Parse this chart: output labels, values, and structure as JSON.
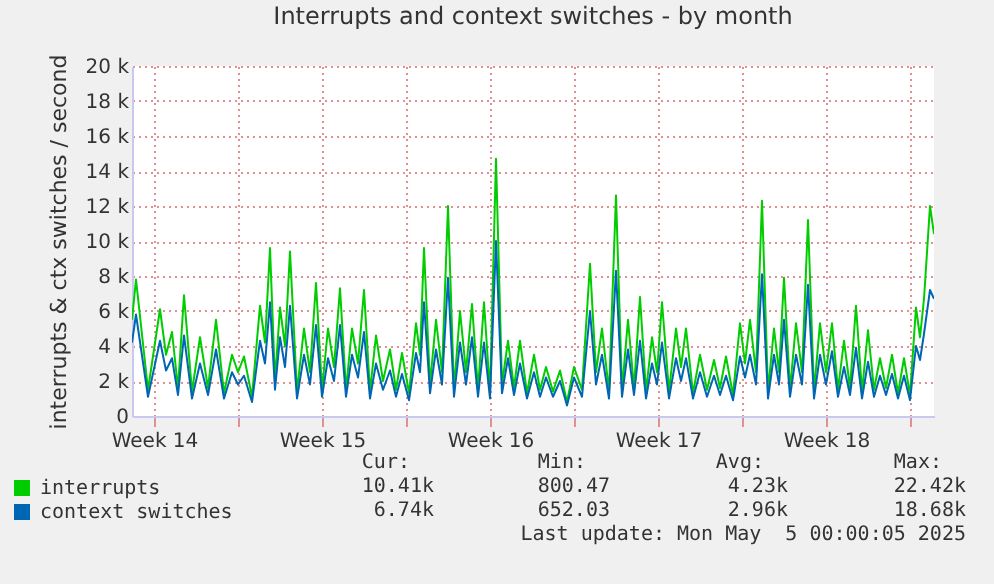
{
  "chart_data": {
    "type": "line",
    "title": "Interrupts and context switches - by month",
    "ylabel": "interrupts & ctx switches / second",
    "x": [
      "2025-04-01T14:00",
      "2025-04-01T18:00",
      "2025-04-02T06:00",
      "2025-04-02T18:00",
      "2025-04-03T00:00",
      "2025-04-03T06:00",
      "2025-04-03T12:00",
      "2025-04-03T18:00",
      "2025-04-04T02:00",
      "2025-04-04T10:00",
      "2025-04-04T18:00",
      "2025-04-05T02:00",
      "2025-04-05T10:00",
      "2025-04-05T18:00",
      "2025-04-06T00:00",
      "2025-04-06T06:00",
      "2025-04-06T14:00",
      "2025-04-06T22:00",
      "2025-04-07T03:00",
      "2025-04-07T08:00",
      "2025-04-07T13:00",
      "2025-04-07T18:00",
      "2025-04-07T23:00",
      "2025-04-08T04:00",
      "2025-04-08T11:00",
      "2025-04-08T18:00",
      "2025-04-09T00:00",
      "2025-04-09T06:00",
      "2025-04-09T12:00",
      "2025-04-09T18:00",
      "2025-04-10T00:00",
      "2025-04-10T06:00",
      "2025-04-10T12:00",
      "2025-04-10T18:00",
      "2025-04-11T00:00",
      "2025-04-11T06:00",
      "2025-04-11T12:00",
      "2025-04-11T18:00",
      "2025-04-12T01:00",
      "2025-04-12T08:00",
      "2025-04-12T14:00",
      "2025-04-12T20:00",
      "2025-04-13T03:00",
      "2025-04-13T10:00",
      "2025-04-13T14:00",
      "2025-04-13T18:00",
      "2025-04-14T00:00",
      "2025-04-14T06:00",
      "2025-04-14T12:00",
      "2025-04-14T18:00",
      "2025-04-15T00:00",
      "2025-04-15T06:00",
      "2025-04-15T12:00",
      "2025-04-15T18:00",
      "2025-04-16T00:00",
      "2025-04-16T06:00",
      "2025-04-16T12:00",
      "2025-04-16T18:00",
      "2025-04-17T00:00",
      "2025-04-17T06:00",
      "2025-04-17T12:00",
      "2025-04-17T18:00",
      "2025-04-18T01:00",
      "2025-04-18T08:00",
      "2025-04-18T14:00",
      "2025-04-18T20:00",
      "2025-04-19T03:00",
      "2025-04-19T10:00",
      "2025-04-19T17:00",
      "2025-04-20T00:00",
      "2025-04-20T08:00",
      "2025-04-20T16:00",
      "2025-04-20T22:00",
      "2025-04-21T04:00",
      "2025-04-21T11:00",
      "2025-04-21T18:00",
      "2025-04-22T00:00",
      "2025-04-22T06:00",
      "2025-04-22T12:00",
      "2025-04-22T18:00",
      "2025-04-23T00:00",
      "2025-04-23T06:00",
      "2025-04-23T11:00",
      "2025-04-23T16:00",
      "2025-04-23T23:00",
      "2025-04-24T06:00",
      "2025-04-24T11:00",
      "2025-04-24T16:00",
      "2025-04-24T23:00",
      "2025-04-25T06:00",
      "2025-04-25T13:00",
      "2025-04-25T20:00",
      "2025-04-26T02:00",
      "2025-04-26T08:00",
      "2025-04-26T15:00",
      "2025-04-26T22:00",
      "2025-04-27T03:00",
      "2025-04-27T08:00",
      "2025-04-27T14:00",
      "2025-04-27T20:00",
      "2025-04-28T02:00",
      "2025-04-28T08:00",
      "2025-04-28T13:00",
      "2025-04-28T18:00",
      "2025-04-29T00:00",
      "2025-04-29T06:00",
      "2025-04-29T12:00",
      "2025-04-29T18:00",
      "2025-04-30T00:00",
      "2025-04-30T06:00",
      "2025-04-30T12:00",
      "2025-04-30T18:00",
      "2025-05-01T00:00",
      "2025-05-01T06:00",
      "2025-05-01T12:00",
      "2025-05-01T18:00",
      "2025-05-02T00:00",
      "2025-05-02T06:00",
      "2025-05-02T12:00",
      "2025-05-02T18:00",
      "2025-05-03T00:00",
      "2025-05-03T06:00",
      "2025-05-03T12:00",
      "2025-05-03T18:00",
      "2025-05-04T00:00",
      "2025-05-04T06:00",
      "2025-05-04T10:00",
      "2025-05-04T14:00",
      "2025-05-04T20:00",
      "2025-05-05T00:00"
    ],
    "series": [
      {
        "name": "interrupts",
        "color": "#00cc00",
        "values": [
          5500,
          7800,
          1500,
          6100,
          3500,
          4800,
          1600,
          6900,
          1400,
          4500,
          1600,
          5500,
          1300,
          3500,
          2500,
          3400,
          1100,
          6300,
          4200,
          9600,
          2000,
          6200,
          4000,
          9400,
          1400,
          5000,
          2500,
          7600,
          1500,
          5000,
          2800,
          7300,
          1500,
          5000,
          3000,
          7200,
          1400,
          4600,
          2000,
          3800,
          1500,
          3600,
          1300,
          5300,
          3500,
          9600,
          1800,
          5500,
          2500,
          12000,
          1500,
          6000,
          2500,
          6400,
          1500,
          6500,
          1300,
          14700,
          1800,
          4300,
          1600,
          4300,
          1300,
          3500,
          1500,
          2800,
          1400,
          2600,
          800,
          2800,
          1500,
          8700,
          2500,
          5000,
          1400,
          12600,
          1500,
          5500,
          1600,
          6800,
          1400,
          4500,
          2500,
          6500,
          1400,
          5000,
          2800,
          5000,
          1300,
          3500,
          1500,
          3200,
          1600,
          3400,
          1200,
          5300,
          3000,
          5500,
          2500,
          12300,
          1400,
          5000,
          2500,
          7900,
          1500,
          5300,
          2500,
          11200,
          1400,
          5300,
          2500,
          5300,
          1500,
          4300,
          1600,
          6300,
          1400,
          4900,
          1500,
          3300,
          1600,
          3500,
          1300,
          3300,
          1200,
          6200,
          4500,
          6700,
          12000,
          10400
        ]
      },
      {
        "name": "context switches",
        "color": "#0066b3",
        "values": [
          4200,
          5800,
          1100,
          4300,
          2600,
          3300,
          1200,
          4600,
          1000,
          3000,
          1200,
          3800,
          1000,
          2500,
          1800,
          2300,
          800,
          4300,
          3000,
          6500,
          1500,
          4500,
          2800,
          6300,
          1000,
          3500,
          1800,
          5200,
          1100,
          3300,
          2000,
          5200,
          1100,
          3500,
          2200,
          4800,
          1000,
          3000,
          1500,
          2600,
          1100,
          2400,
          900,
          3600,
          2500,
          6500,
          1300,
          3800,
          1800,
          7900,
          1100,
          4200,
          1800,
          4500,
          1100,
          4200,
          1000,
          10000,
          1300,
          3300,
          1200,
          3000,
          1000,
          2500,
          1100,
          2200,
          1100,
          2000,
          600,
          2200,
          1100,
          6000,
          1800,
          3500,
          1000,
          8300,
          1100,
          3800,
          1200,
          4300,
          1000,
          3000,
          1800,
          4200,
          1000,
          3300,
          2000,
          3300,
          1000,
          2500,
          1100,
          2300,
          1200,
          2300,
          900,
          3400,
          2200,
          3500,
          1800,
          8100,
          1000,
          3500,
          1800,
          5500,
          1100,
          3500,
          1800,
          7500,
          1000,
          3500,
          1800,
          3700,
          1100,
          2800,
          1200,
          3900,
          1000,
          3100,
          1100,
          2300,
          1200,
          2400,
          1000,
          2300,
          900,
          4000,
          3200,
          4700,
          7200,
          6700
        ]
      }
    ],
    "xlim": [
      "2025-04-01T14:00",
      "2025-05-05T00:00"
    ],
    "xticks": [
      {
        "value": "2025-04-02T12:00",
        "label": "Week 14"
      },
      {
        "value": "2025-04-06T00:00",
        "label": null
      },
      {
        "value": "2025-04-09T12:00",
        "label": "Week 15"
      },
      {
        "value": "2025-04-13T00:00",
        "label": null
      },
      {
        "value": "2025-04-16T12:00",
        "label": "Week 16"
      },
      {
        "value": "2025-04-20T00:00",
        "label": null
      },
      {
        "value": "2025-04-23T12:00",
        "label": "Week 17"
      },
      {
        "value": "2025-04-27T00:00",
        "label": null
      },
      {
        "value": "2025-04-30T12:00",
        "label": "Week 18"
      },
      {
        "value": "2025-05-04T00:00",
        "label": null
      }
    ],
    "ylim": [
      0,
      20000
    ],
    "yticks": [
      0,
      {
        "value": 2000,
        "label": "2 k"
      },
      {
        "value": 4000,
        "label": "4 k"
      },
      {
        "value": 6000,
        "label": "6 k"
      },
      {
        "value": 8000,
        "label": "8 k"
      },
      {
        "value": 10000,
        "label": "10 k"
      },
      {
        "value": 12000,
        "label": "12 k"
      },
      {
        "value": 14000,
        "label": "14 k"
      },
      {
        "value": 16000,
        "label": "16 k"
      },
      {
        "value": 18000,
        "label": "18 k"
      },
      {
        "value": 20000,
        "label": "20 k"
      }
    ],
    "grid": true,
    "legend": "bottom left",
    "line_style": "solid",
    "annotations": [
      "Cur:",
      "Min:",
      "Avg:",
      "Max:",
      "10.41k",
      "800.47",
      "4.23k",
      "22.42k",
      "6.74k",
      "652.03",
      "2.96k",
      "18.68k",
      "Last update: Mon May  5 00:00:05 2025"
    ]
  }
}
